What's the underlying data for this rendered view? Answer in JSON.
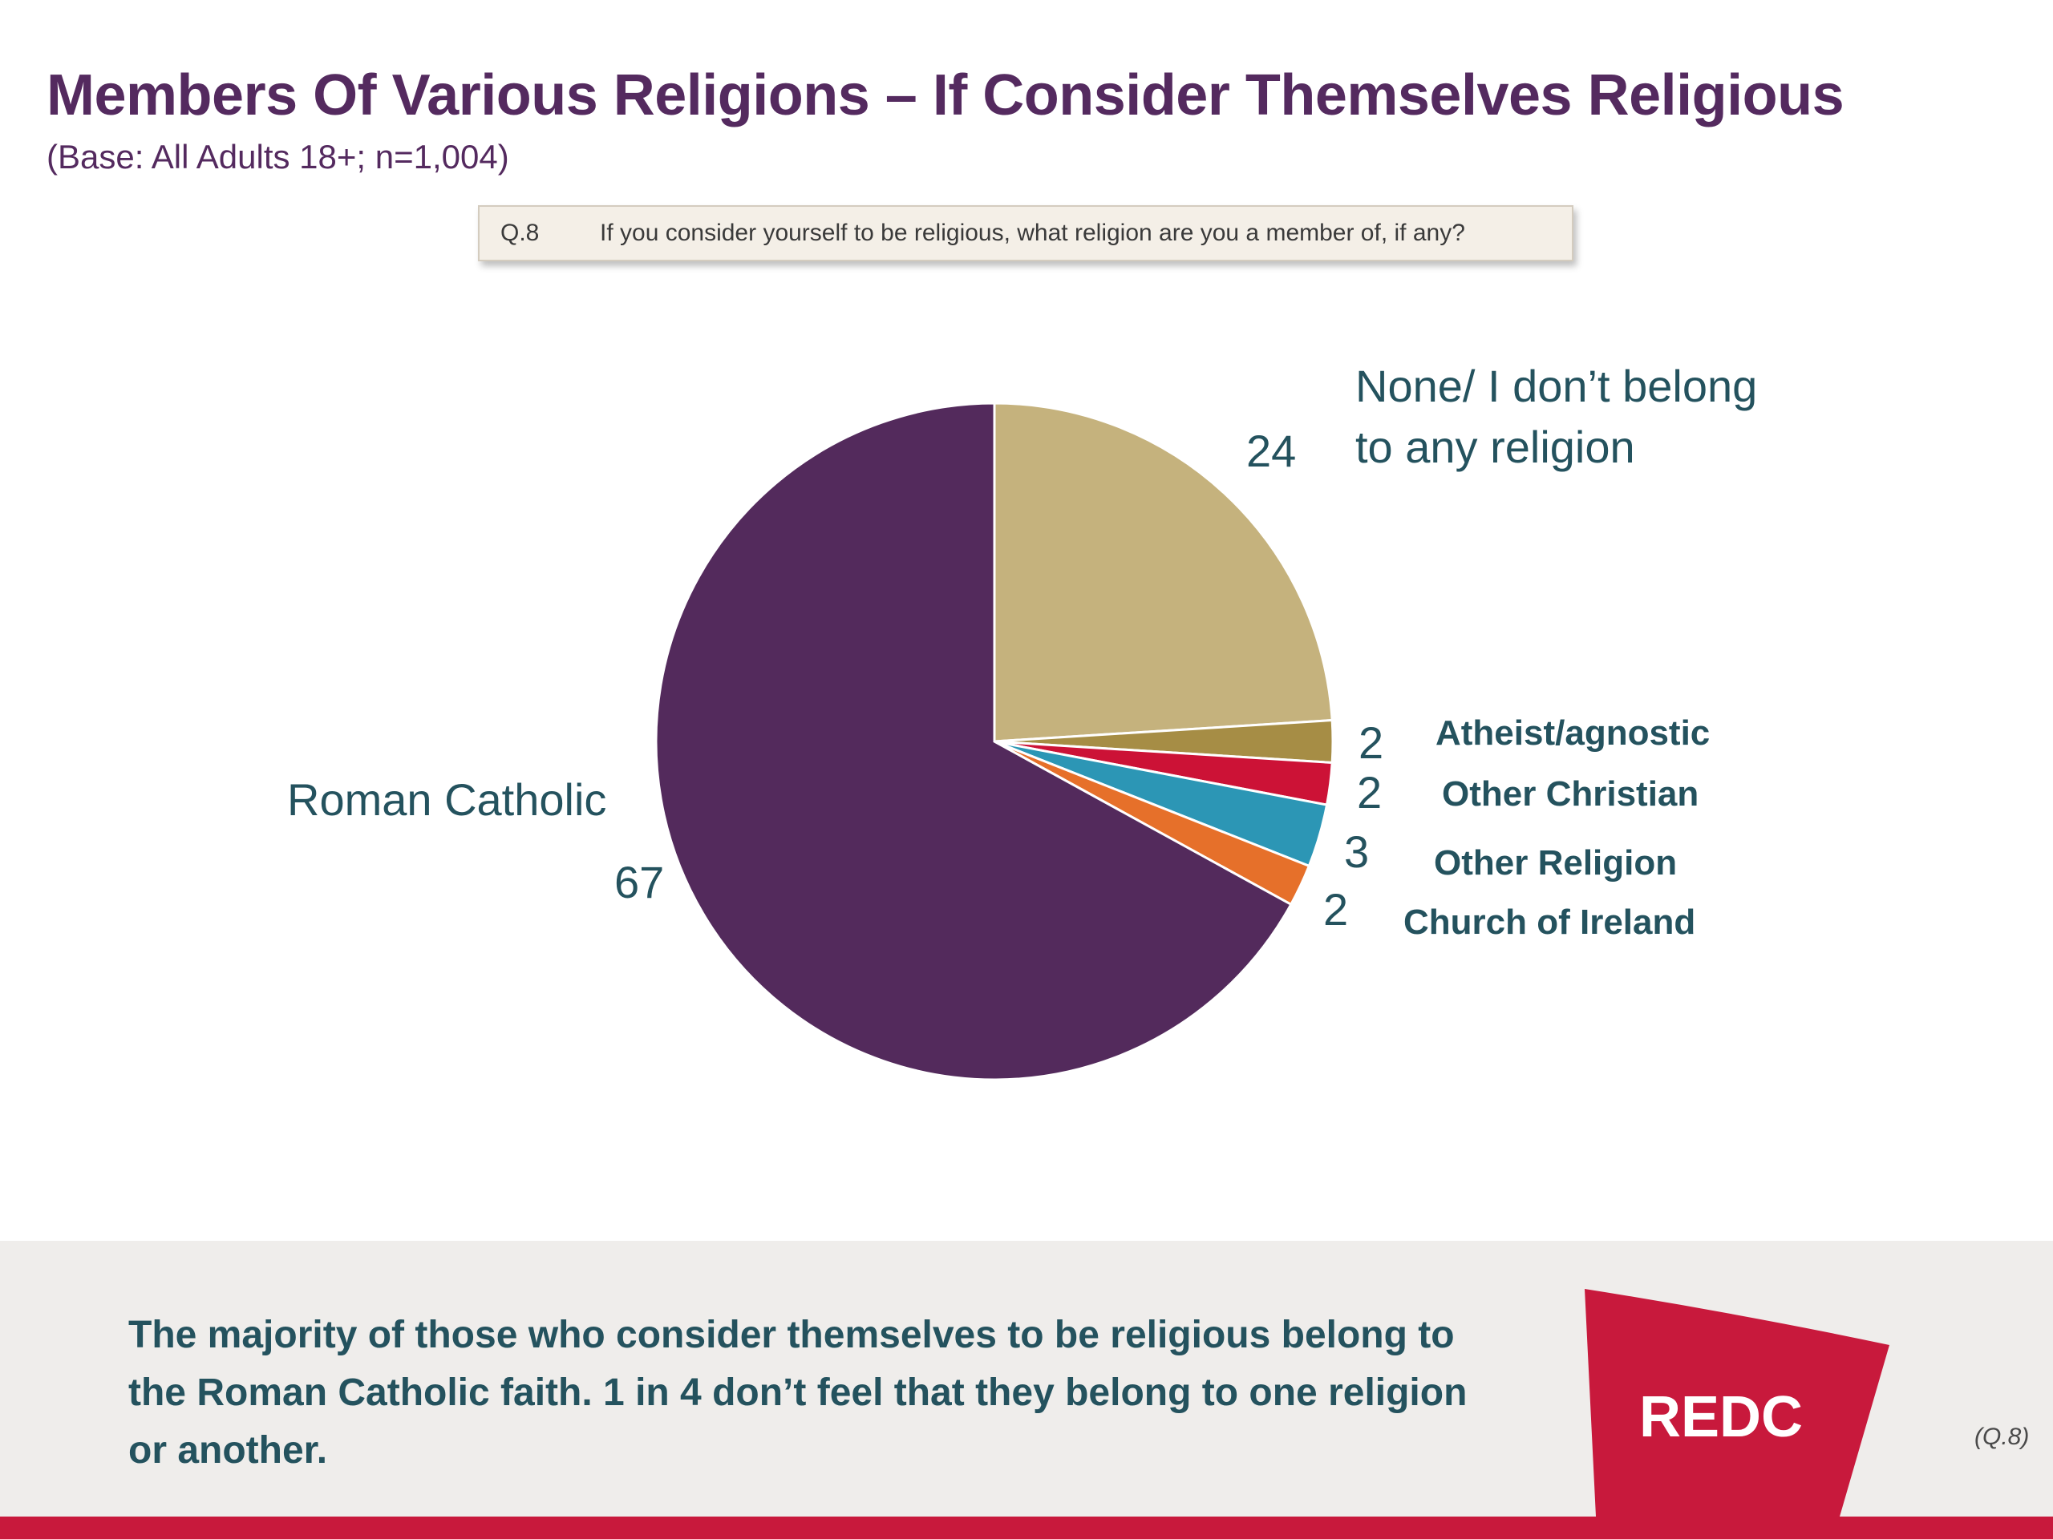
{
  "header": {
    "title": "Members Of Various Religions – If Consider Themselves Religious",
    "subtitle": "(Base: All Adults 18+; n=1,004)"
  },
  "question": {
    "number": "Q.8",
    "text": "If you consider yourself to be religious, what religion are you a member of, if any?"
  },
  "chart_data": {
    "type": "pie",
    "categories": [
      "None/ I don’t belong to any religion",
      "Atheist/agnostic",
      "Other Christian",
      "Other Religion",
      "Church of Ireland",
      "Roman Catholic"
    ],
    "values": [
      24,
      2,
      2,
      3,
      2,
      67
    ],
    "colors": [
      "#c5b27d",
      "#a68d45",
      "#cc1236",
      "#2c96b5",
      "#e6702a",
      "#532a5c"
    ],
    "labels": {
      "none_line1": "None/ I don’t belong",
      "none_line2": "to any religion",
      "atheist": "Atheist/agnostic",
      "other_christian": "Other Christian",
      "other_religion": "Other Religion",
      "church_of_ireland": "Church of Ireland",
      "roman_catholic": "Roman Catholic"
    },
    "value_labels": {
      "none": "24",
      "atheist": "2",
      "other_christian": "2",
      "other_religion": "3",
      "church_of_ireland": "2",
      "roman_catholic": "67"
    }
  },
  "footer": {
    "conclusion": "The majority of those who consider themselves to be religious belong to the Roman Catholic faith. 1 in 4 don’t feel that they belong to one religion or another.",
    "logo_text": "REDC",
    "logo_color": "#c8193c",
    "reference": "(Q.8)"
  }
}
